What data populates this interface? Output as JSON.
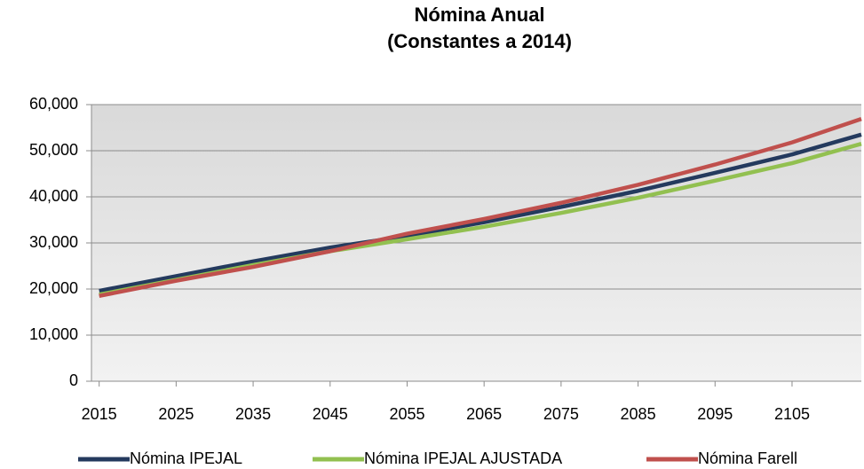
{
  "chart_data": {
    "type": "line",
    "title": "Nómina Anual",
    "subtitle": "(Constantes a 2014)",
    "x": [
      2015,
      2025,
      2035,
      2045,
      2055,
      2065,
      2075,
      2085,
      2095,
      2105,
      2114
    ],
    "series": [
      {
        "name": "Nómina IPEJAL",
        "color": "#243a5e",
        "values": [
          19600,
          22800,
          26000,
          29000,
          31500,
          34500,
          37800,
          41300,
          45200,
          49200,
          53500
        ]
      },
      {
        "name": "Nómina IPEJAL AJUSTADA",
        "color": "#92c050",
        "values": [
          18800,
          22000,
          25200,
          28200,
          30800,
          33500,
          36500,
          39800,
          43500,
          47300,
          51500
        ]
      },
      {
        "name": "Nómina Farell",
        "color": "#c0504d",
        "values": [
          18500,
          21800,
          24800,
          28200,
          32000,
          35200,
          38700,
          42600,
          47000,
          51800,
          56900
        ]
      }
    ],
    "xlim": [
      2014,
      2114
    ],
    "xticks": [
      2015,
      2025,
      2035,
      2045,
      2055,
      2065,
      2075,
      2085,
      2095,
      2105
    ],
    "ylim": [
      0,
      60000
    ],
    "yticks": [
      0,
      {
        "value": 10000,
        "label": "10,000"
      },
      {
        "value": 20000,
        "label": "20,000"
      },
      {
        "value": 30000,
        "label": "30,000"
      },
      {
        "value": 40000,
        "label": "40,000"
      },
      {
        "value": 50000,
        "label": "50,000"
      },
      {
        "value": 60000,
        "label": "60,000"
      }
    ],
    "grid": true,
    "legend": "bottom"
  }
}
